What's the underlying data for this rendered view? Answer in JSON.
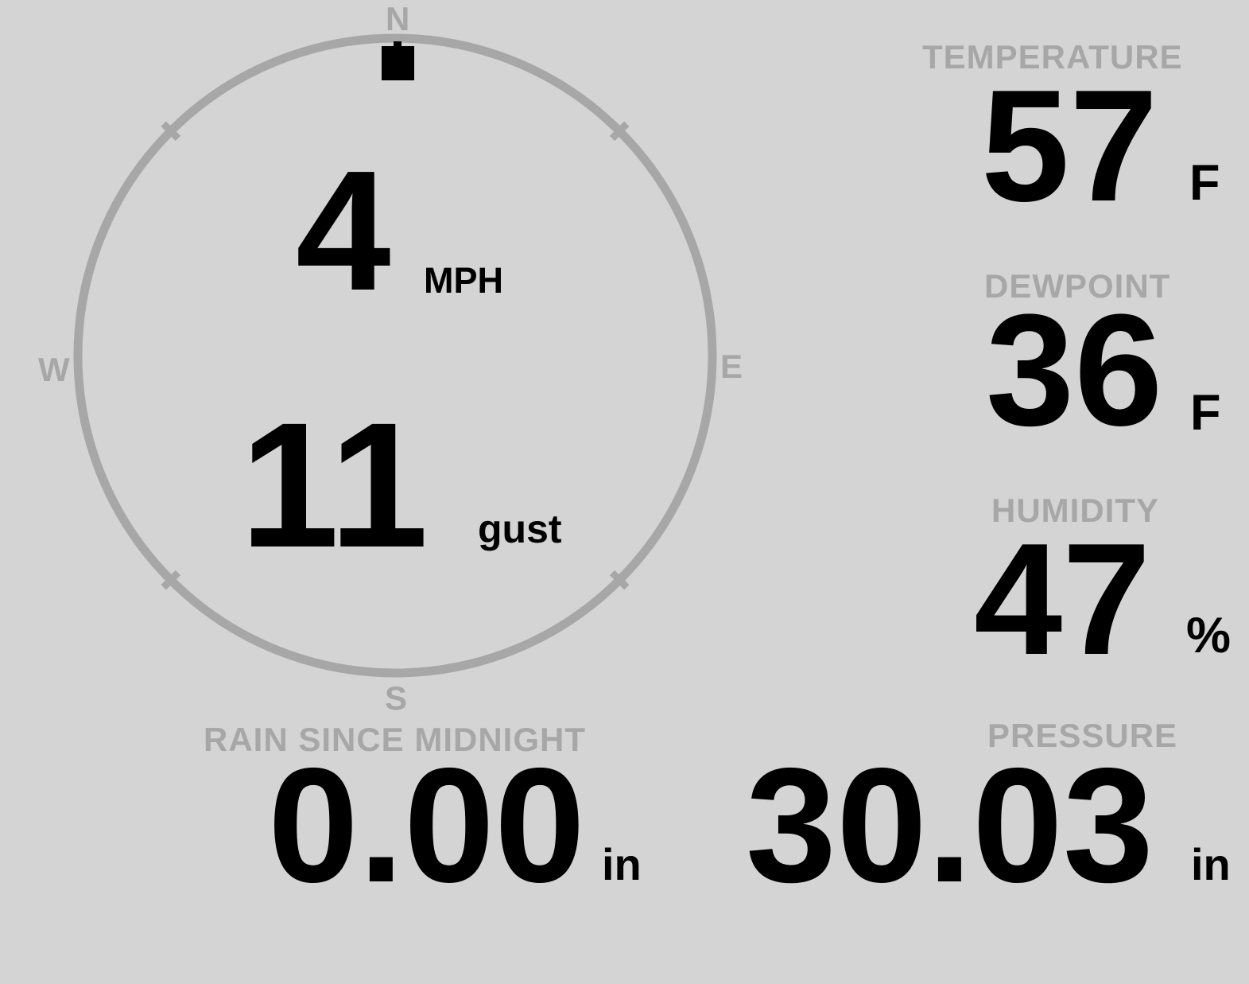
{
  "theme": {
    "background": "#d4d4d4",
    "muted_gray": "#a7a7a7",
    "foreground": "#000000"
  },
  "compass": {
    "north": "N",
    "east": "E",
    "south": "S",
    "west": "W",
    "wind_direction_deg": 0
  },
  "wind": {
    "speed": "4",
    "speed_unit": "MPH",
    "gust": "11",
    "gust_label": "gust"
  },
  "temperature": {
    "label": "TEMPERATURE",
    "value": "57",
    "unit": "F"
  },
  "dewpoint": {
    "label": "DEWPOINT",
    "value": "36",
    "unit": "F"
  },
  "humidity": {
    "label": "HUMIDITY",
    "value": "47",
    "unit": "%"
  },
  "rain": {
    "label": "RAIN SINCE MIDNIGHT",
    "value": "0.00",
    "unit": "in"
  },
  "pressure": {
    "label": "PRESSURE",
    "value": "30.03",
    "unit": "in"
  }
}
